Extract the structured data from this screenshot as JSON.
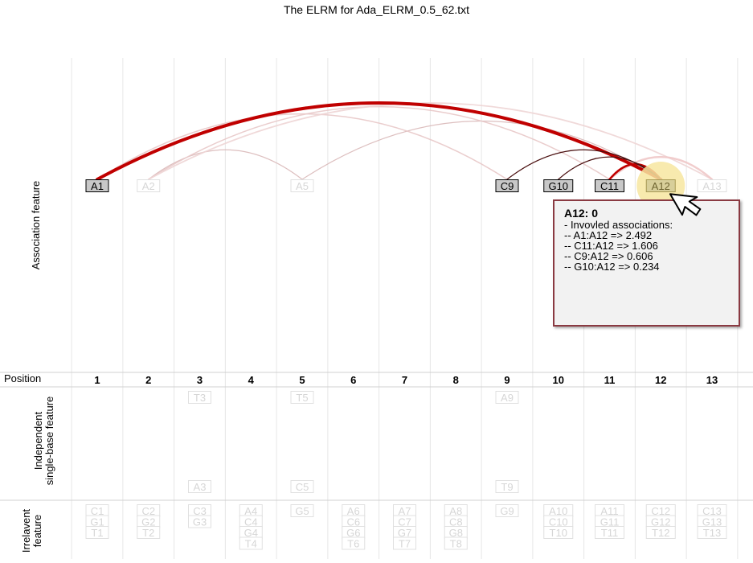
{
  "title": "The ELRM for Ada_ELRM_0.5_62.txt",
  "row_labels": {
    "association": "Association feature",
    "position": "Position",
    "independent_line1": "Independent",
    "independent_line2": "single-base feature",
    "irrelevant_line1": "Irrelavent",
    "irrelevant_line2": "feature"
  },
  "positions": [
    "1",
    "2",
    "3",
    "4",
    "5",
    "6",
    "7",
    "8",
    "9",
    "10",
    "11",
    "12",
    "13"
  ],
  "association_nodes": [
    {
      "label": "A1",
      "col": 1,
      "state": "strong"
    },
    {
      "label": "A2",
      "col": 2,
      "state": "faded"
    },
    {
      "label": "A5",
      "col": 5,
      "state": "faded"
    },
    {
      "label": "C9",
      "col": 9,
      "state": "strong"
    },
    {
      "label": "G10",
      "col": 10,
      "state": "strong"
    },
    {
      "label": "C11",
      "col": 11,
      "state": "strong"
    },
    {
      "label": "A12",
      "col": 12,
      "state": "highlight"
    },
    {
      "label": "A13",
      "col": 13,
      "state": "faded"
    }
  ],
  "association_arcs": [
    {
      "from": 1,
      "to": 12,
      "weight": 2.492,
      "color": "#c00000",
      "active": true
    },
    {
      "from": 11,
      "to": 12,
      "weight": 1.606,
      "color": "#c00000",
      "active": true
    },
    {
      "from": 9,
      "to": 12,
      "weight": 0.606,
      "color": "#4a0f0f",
      "active": true
    },
    {
      "from": 10,
      "to": 12,
      "weight": 0.234,
      "color": "#4a0f0f",
      "active": true
    },
    {
      "from": 2,
      "to": 5,
      "weight": 0.3,
      "color": "#d9b8b8",
      "active": false
    },
    {
      "from": 5,
      "to": 12,
      "weight": 0.3,
      "color": "#d9b8b8",
      "active": false
    },
    {
      "from": 1,
      "to": 9,
      "weight": 0.5,
      "color": "#e8c8c8",
      "active": false
    },
    {
      "from": 2,
      "to": 11,
      "weight": 0.5,
      "color": "#e8c8c8",
      "active": false
    },
    {
      "from": 2,
      "to": 13,
      "weight": 0.6,
      "color": "#eed5d5",
      "active": false
    },
    {
      "from": 11,
      "to": 13,
      "weight": 0.8,
      "color": "#f0c8c8",
      "active": false
    }
  ],
  "independent_top": [
    {
      "label": "T3",
      "col": 3
    },
    {
      "label": "T5",
      "col": 5
    },
    {
      "label": "A9",
      "col": 9
    }
  ],
  "independent_bottom": [
    {
      "label": "A3",
      "col": 3
    },
    {
      "label": "C5",
      "col": 5
    },
    {
      "label": "T9",
      "col": 9
    }
  ],
  "irrelevant": [
    {
      "col": 1,
      "labels": [
        "C1",
        "G1",
        "T1"
      ]
    },
    {
      "col": 2,
      "labels": [
        "C2",
        "G2",
        "T2"
      ]
    },
    {
      "col": 3,
      "labels": [
        "C3",
        "G3"
      ]
    },
    {
      "col": 4,
      "labels": [
        "A4",
        "C4",
        "G4",
        "T4"
      ]
    },
    {
      "col": 5,
      "labels": [
        "G5"
      ]
    },
    {
      "col": 6,
      "labels": [
        "A6",
        "C6",
        "G6",
        "T6"
      ]
    },
    {
      "col": 7,
      "labels": [
        "A7",
        "C7",
        "G7",
        "T7"
      ]
    },
    {
      "col": 8,
      "labels": [
        "A8",
        "C8",
        "G8",
        "T8"
      ]
    },
    {
      "col": 9,
      "labels": [
        "G9"
      ]
    },
    {
      "col": 10,
      "labels": [
        "A10",
        "C10",
        "T10"
      ]
    },
    {
      "col": 11,
      "labels": [
        "A11",
        "G11",
        "T11"
      ]
    },
    {
      "col": 12,
      "labels": [
        "C12",
        "G12",
        "T12"
      ]
    },
    {
      "col": 13,
      "labels": [
        "C13",
        "G13",
        "T13"
      ]
    }
  ],
  "tooltip": {
    "title": "A12: 0",
    "lines": [
      "- Invovled associations:",
      "-- A1:A12 => 2.492",
      "-- C11:A12 => 1.606",
      "-- C9:A12 => 0.606",
      "-- G10:A12 => 0.234"
    ]
  },
  "colors": {
    "strong_fill": "#c8c8c8",
    "faded_stroke": "#e0e0e0",
    "faded_text": "#d6d6d6",
    "highlight_glow": "#f7e6a0",
    "grid": "#e6e6e6",
    "tooltip_border": "#8a3a42"
  }
}
